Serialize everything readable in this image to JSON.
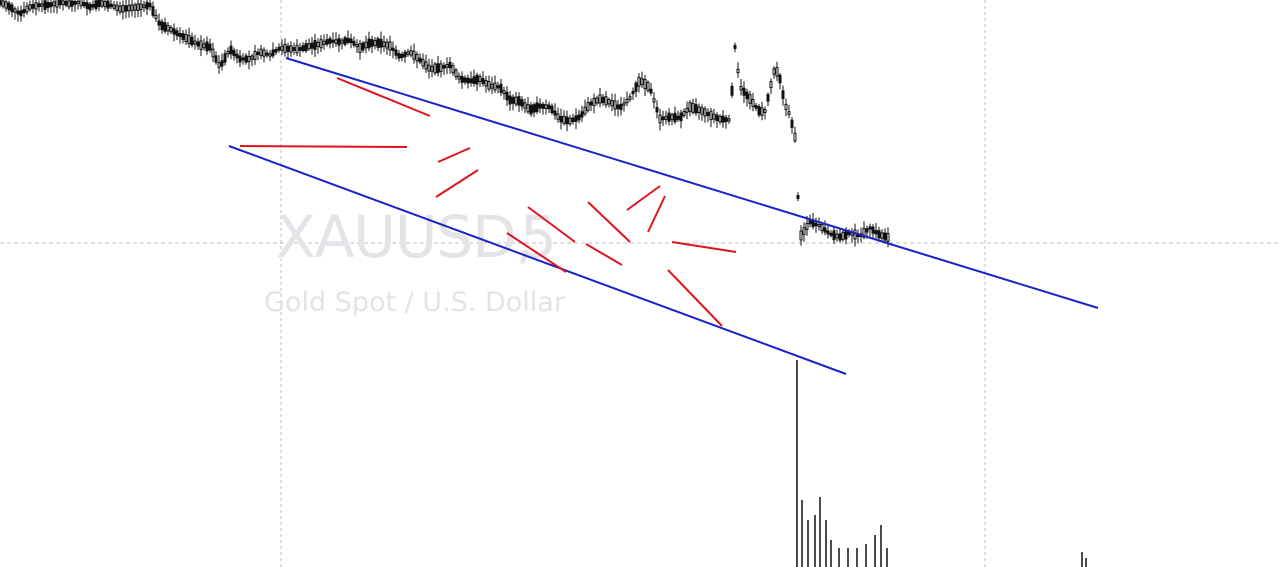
{
  "chart": {
    "symbol": "XAUUSD,",
    "timeframe": "5",
    "description": "Gold Spot / U.S. Dollar"
  },
  "colors": {
    "background": "#ffffff",
    "candles": "#111111",
    "channel_lines": "#1a22c8",
    "pattern_lines": "#e0141e",
    "grid": "#a9c3cf",
    "watermark": "#e3e3e8"
  },
  "chart_data": {
    "type": "line",
    "title": "",
    "xlabel": "",
    "ylabel": "",
    "grid": true,
    "legend": "none",
    "note_style": "candlestick",
    "x": [
      0,
      10,
      20,
      30,
      40,
      50,
      60,
      70,
      80,
      90,
      100,
      110,
      120,
      130,
      140,
      150,
      160,
      170,
      180,
      190,
      200,
      210,
      220,
      230,
      240,
      250,
      260,
      270,
      280,
      290,
      300,
      310,
      320,
      330,
      340,
      350,
      360,
      370,
      380,
      390,
      400,
      410,
      420,
      430,
      440,
      450,
      460,
      470,
      480,
      490,
      500,
      510,
      520,
      530,
      540,
      550,
      560,
      570,
      580,
      590,
      600,
      610,
      620,
      630,
      640,
      650,
      660,
      670,
      680,
      690,
      700,
      710,
      720,
      730,
      735,
      740,
      750,
      760,
      765,
      770,
      775,
      780,
      785,
      790,
      795,
      800,
      810,
      820,
      830,
      840,
      850,
      860,
      870,
      880,
      890
    ],
    "series": [
      {
        "values": [
          565,
          560,
          553,
          560,
          562,
          562,
          565,
          563,
          565,
          560,
          564,
          562,
          558,
          559,
          560,
          562,
          542,
          538,
          532,
          527,
          522,
          520,
          500,
          518,
          508,
          508,
          515,
          512,
          519,
          518,
          518,
          521,
          523,
          526,
          525,
          527,
          519,
          524,
          524,
          521,
          510,
          515,
          507,
          498,
          499,
          502,
          488,
          486,
          488,
          481,
          480,
          467,
          466,
          457,
          461,
          460,
          448,
          446,
          450,
          463,
          468,
          465,
          459,
          469,
          487,
          479,
          448,
          450,
          449,
          460,
          457,
          452,
          448,
          447,
          520,
          480,
          468,
          455,
          456,
          478,
          500,
          488,
          462,
          452,
          430,
          330,
          345,
          341,
          333,
          330,
          334,
          331,
          339,
          332,
          329
        ]
      }
    ]
  }
}
